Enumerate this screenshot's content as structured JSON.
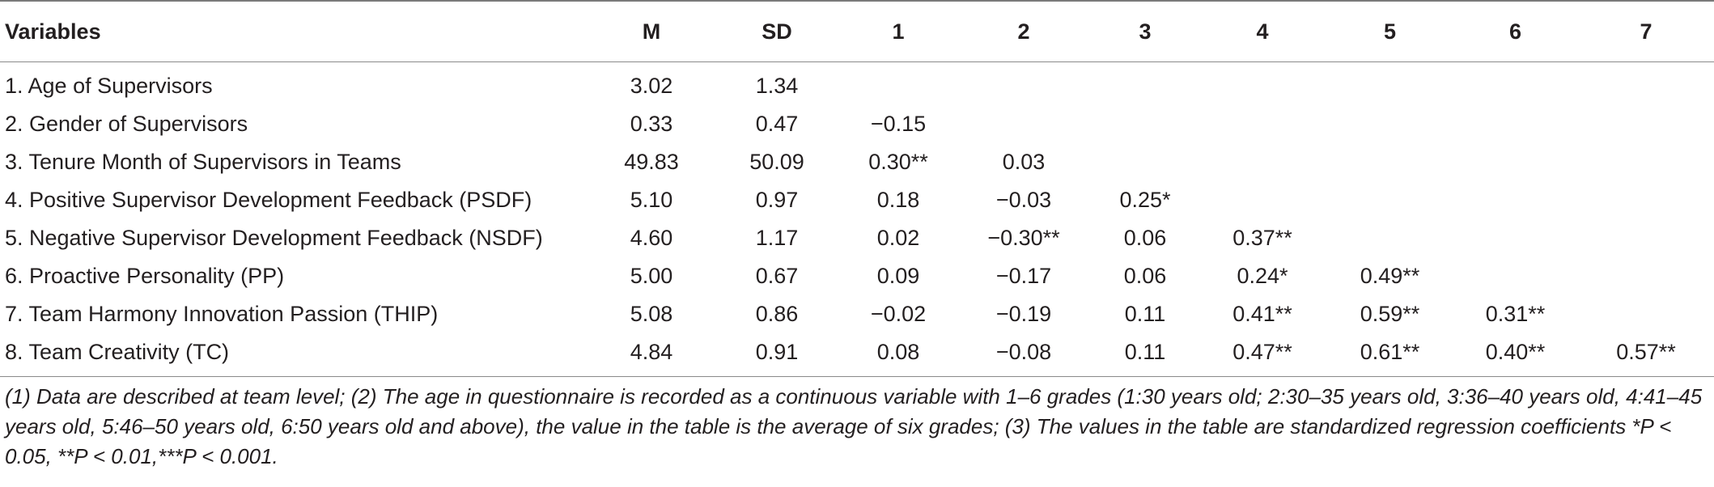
{
  "table": {
    "columns": [
      "Variables",
      "M",
      "SD",
      "1",
      "2",
      "3",
      "4",
      "5",
      "6",
      "7"
    ],
    "rows": [
      [
        "1. Age of Supervisors",
        "3.02",
        "1.34",
        "",
        "",
        "",
        "",
        "",
        "",
        ""
      ],
      [
        "2. Gender of Supervisors",
        "0.33",
        "0.47",
        "−0.15",
        "",
        "",
        "",
        "",
        "",
        ""
      ],
      [
        "3. Tenure Month of Supervisors in Teams",
        "49.83",
        "50.09",
        "0.30**",
        "0.03",
        "",
        "",
        "",
        "",
        ""
      ],
      [
        "4. Positive Supervisor Development Feedback (PSDF)",
        "5.10",
        "0.97",
        "0.18",
        "−0.03",
        "0.25*",
        "",
        "",
        "",
        ""
      ],
      [
        "5. Negative Supervisor Development Feedback (NSDF)",
        "4.60",
        "1.17",
        "0.02",
        "−0.30**",
        "0.06",
        "0.37**",
        "",
        "",
        ""
      ],
      [
        "6. Proactive Personality (PP)",
        "5.00",
        "0.67",
        "0.09",
        "−0.17",
        "0.06",
        "0.24*",
        "0.49**",
        "",
        ""
      ],
      [
        "7. Team Harmony Innovation Passion (THIP)",
        "5.08",
        "0.86",
        "−0.02",
        "−0.19",
        "0.11",
        "0.41**",
        "0.59**",
        "0.31**",
        ""
      ],
      [
        "8. Team Creativity (TC)",
        "4.84",
        "0.91",
        "0.08",
        "−0.08",
        "0.11",
        "0.47**",
        "0.61**",
        "0.40**",
        "0.57**"
      ]
    ]
  },
  "note": "(1) Data are described at team level; (2) The age in questionnaire is recorded as a continuous variable with 1–6 grades (1:30 years old; 2:30–35 years old, 3:36–40 years old, 4:41–45 years old, 5:46–50 years old, 6:50 years old and above), the value in the table is the average of six grades; (3) The values in the table are standardized regression coefficients *P < 0.05, **P < 0.01,***P < 0.001."
}
